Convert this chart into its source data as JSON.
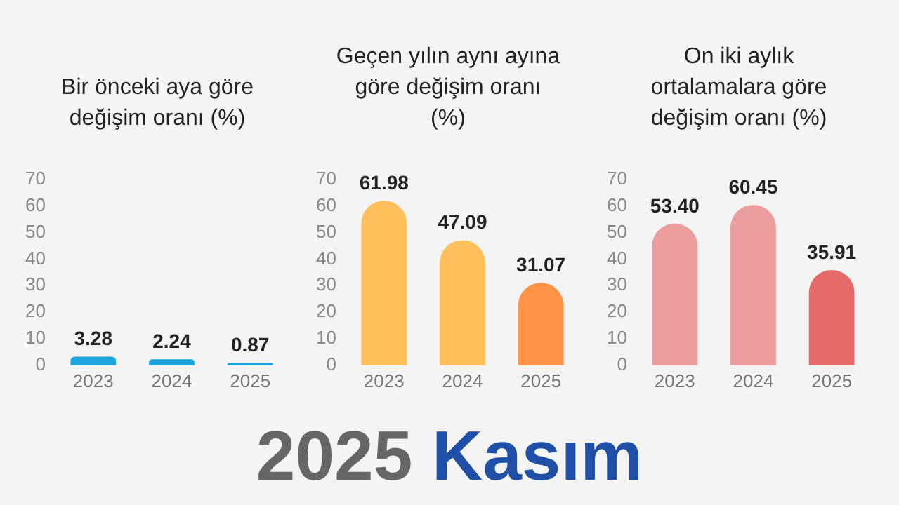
{
  "chart_data": [
    {
      "type": "bar",
      "title": "Bir önceki aya göre değişim oranı (%)",
      "categories": [
        "2023",
        "2024",
        "2025"
      ],
      "values": [
        3.28,
        2.24,
        0.87
      ],
      "colors": [
        "#1ea5dd",
        "#1ea5dd",
        "#1ea5dd"
      ],
      "value_labels": [
        "3.28",
        "2.24",
        "0.87"
      ],
      "ylim": [
        0,
        70
      ],
      "yticks": [
        0,
        10,
        20,
        30,
        40,
        50,
        60,
        70
      ],
      "grid": false,
      "annotations": [
        "2025 Kasım"
      ]
    },
    {
      "type": "bar",
      "title": "Geçen yılın aynı ayına göre değişim oranı (%)",
      "categories": [
        "2023",
        "2024",
        "2025"
      ],
      "values": [
        61.98,
        47.09,
        31.07
      ],
      "colors": [
        "#ffc05c",
        "#ffc05c",
        "#ff9448"
      ],
      "value_labels": [
        "61.98",
        "47.09",
        "31.07"
      ],
      "ylim": [
        0,
        70
      ],
      "yticks": [
        0,
        10,
        20,
        30,
        40,
        50,
        60,
        70
      ],
      "grid": false
    },
    {
      "type": "bar",
      "title": "On iki aylık ortalamalara göre değişim oranı (%)",
      "categories": [
        "2023",
        "2024",
        "2025"
      ],
      "values": [
        53.4,
        60.45,
        35.91
      ],
      "colors": [
        "#eb9c9c",
        "#eb9c9c",
        "#e56b6b"
      ],
      "value_labels": [
        "53.40",
        "60.45",
        "35.91"
      ],
      "ylim": [
        0,
        70
      ],
      "yticks": [
        0,
        10,
        20,
        30,
        40,
        50,
        60,
        70
      ],
      "grid": false
    }
  ]
}
